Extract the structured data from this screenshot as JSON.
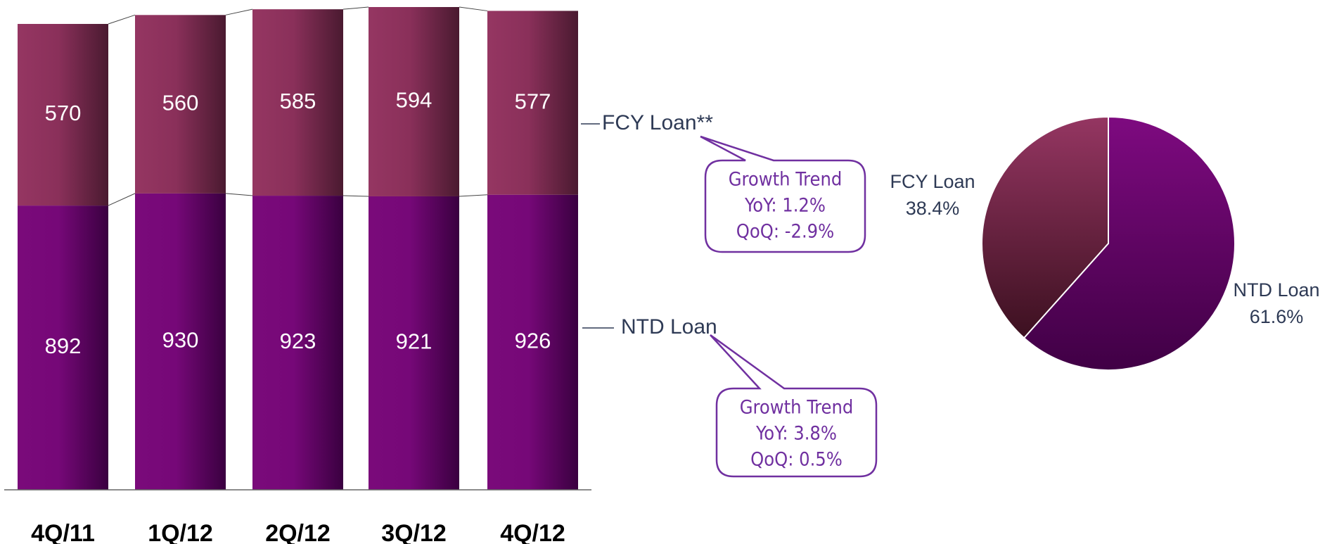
{
  "chart_data": [
    {
      "type": "bar",
      "categories": [
        "4Q/11",
        "1Q/12",
        "2Q/12",
        "3Q/12",
        "4Q/12"
      ],
      "series": [
        {
          "name": "NTD Loan",
          "color": "#7a0a7a",
          "values": [
            892,
            930,
            923,
            921,
            926
          ]
        },
        {
          "name": "FCY Loan**",
          "color": "#933460",
          "values": [
            570,
            560,
            585,
            594,
            577
          ]
        }
      ],
      "stacked": true,
      "annotations": [
        {
          "series": 1,
          "lines": [
            "Growth Trend",
            "YoY: 1.2%",
            "QoQ: -2.9%"
          ]
        },
        {
          "series": 0,
          "lines": [
            "Growth Trend",
            "YoY: 3.8%",
            "QoQ: 0.5%"
          ]
        }
      ]
    },
    {
      "type": "pie",
      "categories": [
        "FCY Loan",
        "NTD Loan"
      ],
      "values": [
        38.4,
        61.6
      ],
      "value_labels": [
        "38.4%",
        "61.6%"
      ],
      "colors": [
        "#933460",
        "#7a0a7a"
      ]
    }
  ]
}
